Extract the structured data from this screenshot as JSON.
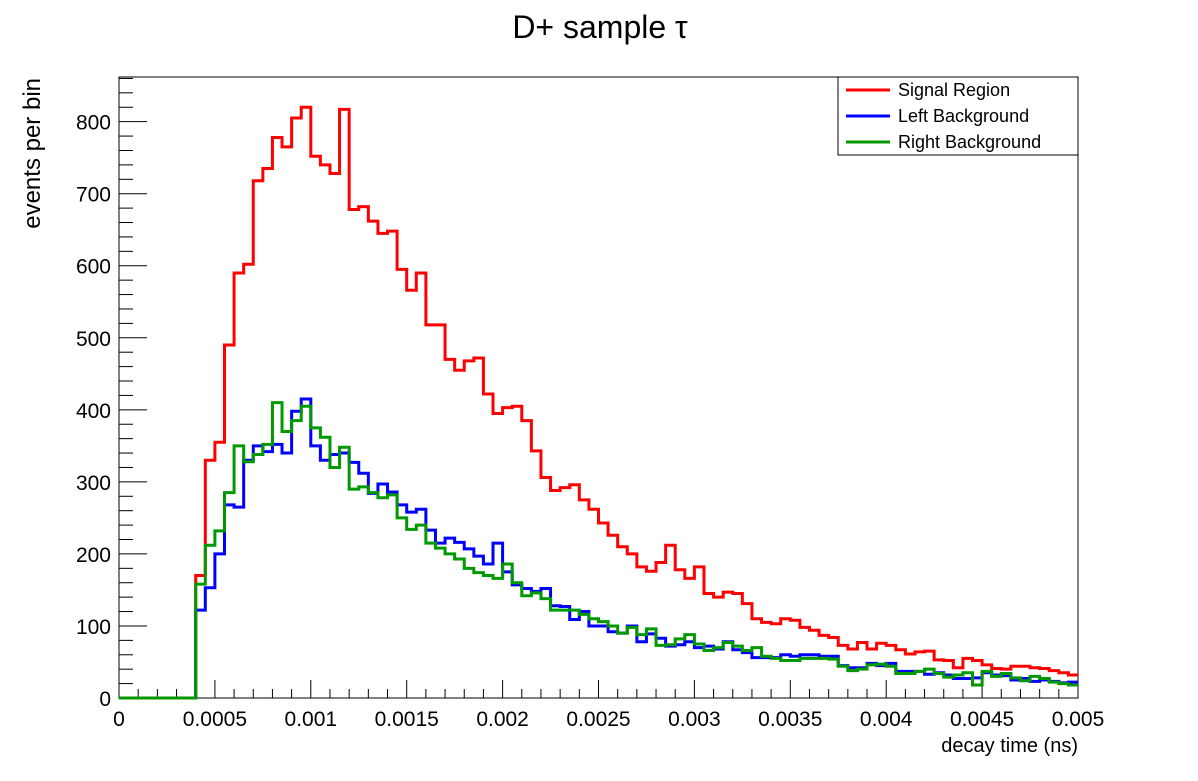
{
  "chart_data": {
    "type": "step-histogram",
    "title": "D+ sample τ",
    "xlabel": "decay time (ns)",
    "ylabel": "events per bin",
    "xlim": [
      0,
      0.005
    ],
    "ylim": [
      0,
      862
    ],
    "bins": 100,
    "bin_width": 5e-05,
    "x_ticks": [
      0,
      0.0005,
      0.001,
      0.0015,
      0.002,
      0.0025,
      0.003,
      0.0035,
      0.004,
      0.0045,
      0.005
    ],
    "x_tick_labels": [
      "0",
      "0.0005",
      "0.001",
      "0.0015",
      "0.002",
      "0.0025",
      "0.003",
      "0.0035",
      "0.004",
      "0.0045",
      "0.005"
    ],
    "y_ticks": [
      0,
      100,
      200,
      300,
      400,
      500,
      600,
      700,
      800
    ],
    "y_tick_labels": [
      "0",
      "100",
      "200",
      "300",
      "400",
      "500",
      "600",
      "700",
      "800"
    ],
    "legend_position": "top-right",
    "grid": false,
    "series": [
      {
        "name": "Signal Region",
        "color": "#ff0000",
        "values": [
          0,
          0,
          0,
          0,
          0,
          0,
          0,
          0,
          170,
          330,
          355,
          490,
          590,
          602,
          718,
          735,
          778,
          765,
          805,
          820,
          752,
          740,
          728,
          817,
          678,
          682,
          662,
          645,
          648,
          595,
          566,
          590,
          518,
          518,
          470,
          455,
          468,
          472,
          422,
          395,
          403,
          405,
          385,
          343,
          306,
          288,
          292,
          296,
          275,
          262,
          243,
          226,
          210,
          200,
          182,
          176,
          188,
          212,
          178,
          166,
          182,
          145,
          140,
          147,
          145,
          131,
          110,
          105,
          103,
          110,
          108,
          98,
          94,
          87,
          84,
          73,
          68,
          77,
          68,
          76,
          73,
          67,
          61,
          64,
          65,
          53,
          52,
          42,
          55,
          52,
          46,
          41,
          40,
          44,
          44,
          42,
          41,
          38,
          35,
          32
        ]
      },
      {
        "name": "Left Background",
        "color": "#0000ff",
        "values": [
          0,
          0,
          0,
          0,
          0,
          0,
          0,
          0,
          122,
          153,
          200,
          268,
          265,
          330,
          350,
          342,
          352,
          340,
          398,
          415,
          350,
          330,
          338,
          340,
          327,
          312,
          284,
          297,
          286,
          268,
          258,
          262,
          233,
          215,
          222,
          216,
          207,
          197,
          186,
          215,
          175,
          157,
          152,
          148,
          152,
          128,
          127,
          109,
          120,
          100,
          100,
          92,
          90,
          100,
          78,
          89,
          83,
          72,
          74,
          78,
          70,
          72,
          68,
          78,
          67,
          63,
          56,
          56,
          56,
          60,
          58,
          60,
          60,
          58,
          58,
          45,
          42,
          42,
          48,
          45,
          48,
          37,
          37,
          37,
          33,
          35,
          32,
          27,
          27,
          28,
          35,
          32,
          31,
          25,
          27,
          23,
          25,
          23,
          21,
          22
        ]
      },
      {
        "name": "Right Background",
        "color": "#009900",
        "values": [
          0,
          0,
          0,
          0,
          0,
          0,
          0,
          0,
          158,
          212,
          232,
          285,
          350,
          328,
          338,
          352,
          410,
          370,
          385,
          405,
          375,
          362,
          320,
          348,
          290,
          293,
          285,
          278,
          282,
          250,
          234,
          240,
          215,
          208,
          200,
          193,
          180,
          174,
          170,
          166,
          186,
          160,
          142,
          146,
          138,
          122,
          122,
          122,
          116,
          110,
          106,
          100,
          90,
          98,
          88,
          96,
          73,
          74,
          82,
          88,
          75,
          66,
          70,
          77,
          72,
          66,
          70,
          58,
          55,
          52,
          52,
          55,
          55,
          55,
          54,
          44,
          38,
          40,
          46,
          47,
          44,
          34,
          34,
          37,
          40,
          34,
          29,
          32,
          35,
          18,
          37,
          30,
          34,
          28,
          24,
          30,
          27,
          22,
          20,
          18
        ]
      }
    ]
  }
}
